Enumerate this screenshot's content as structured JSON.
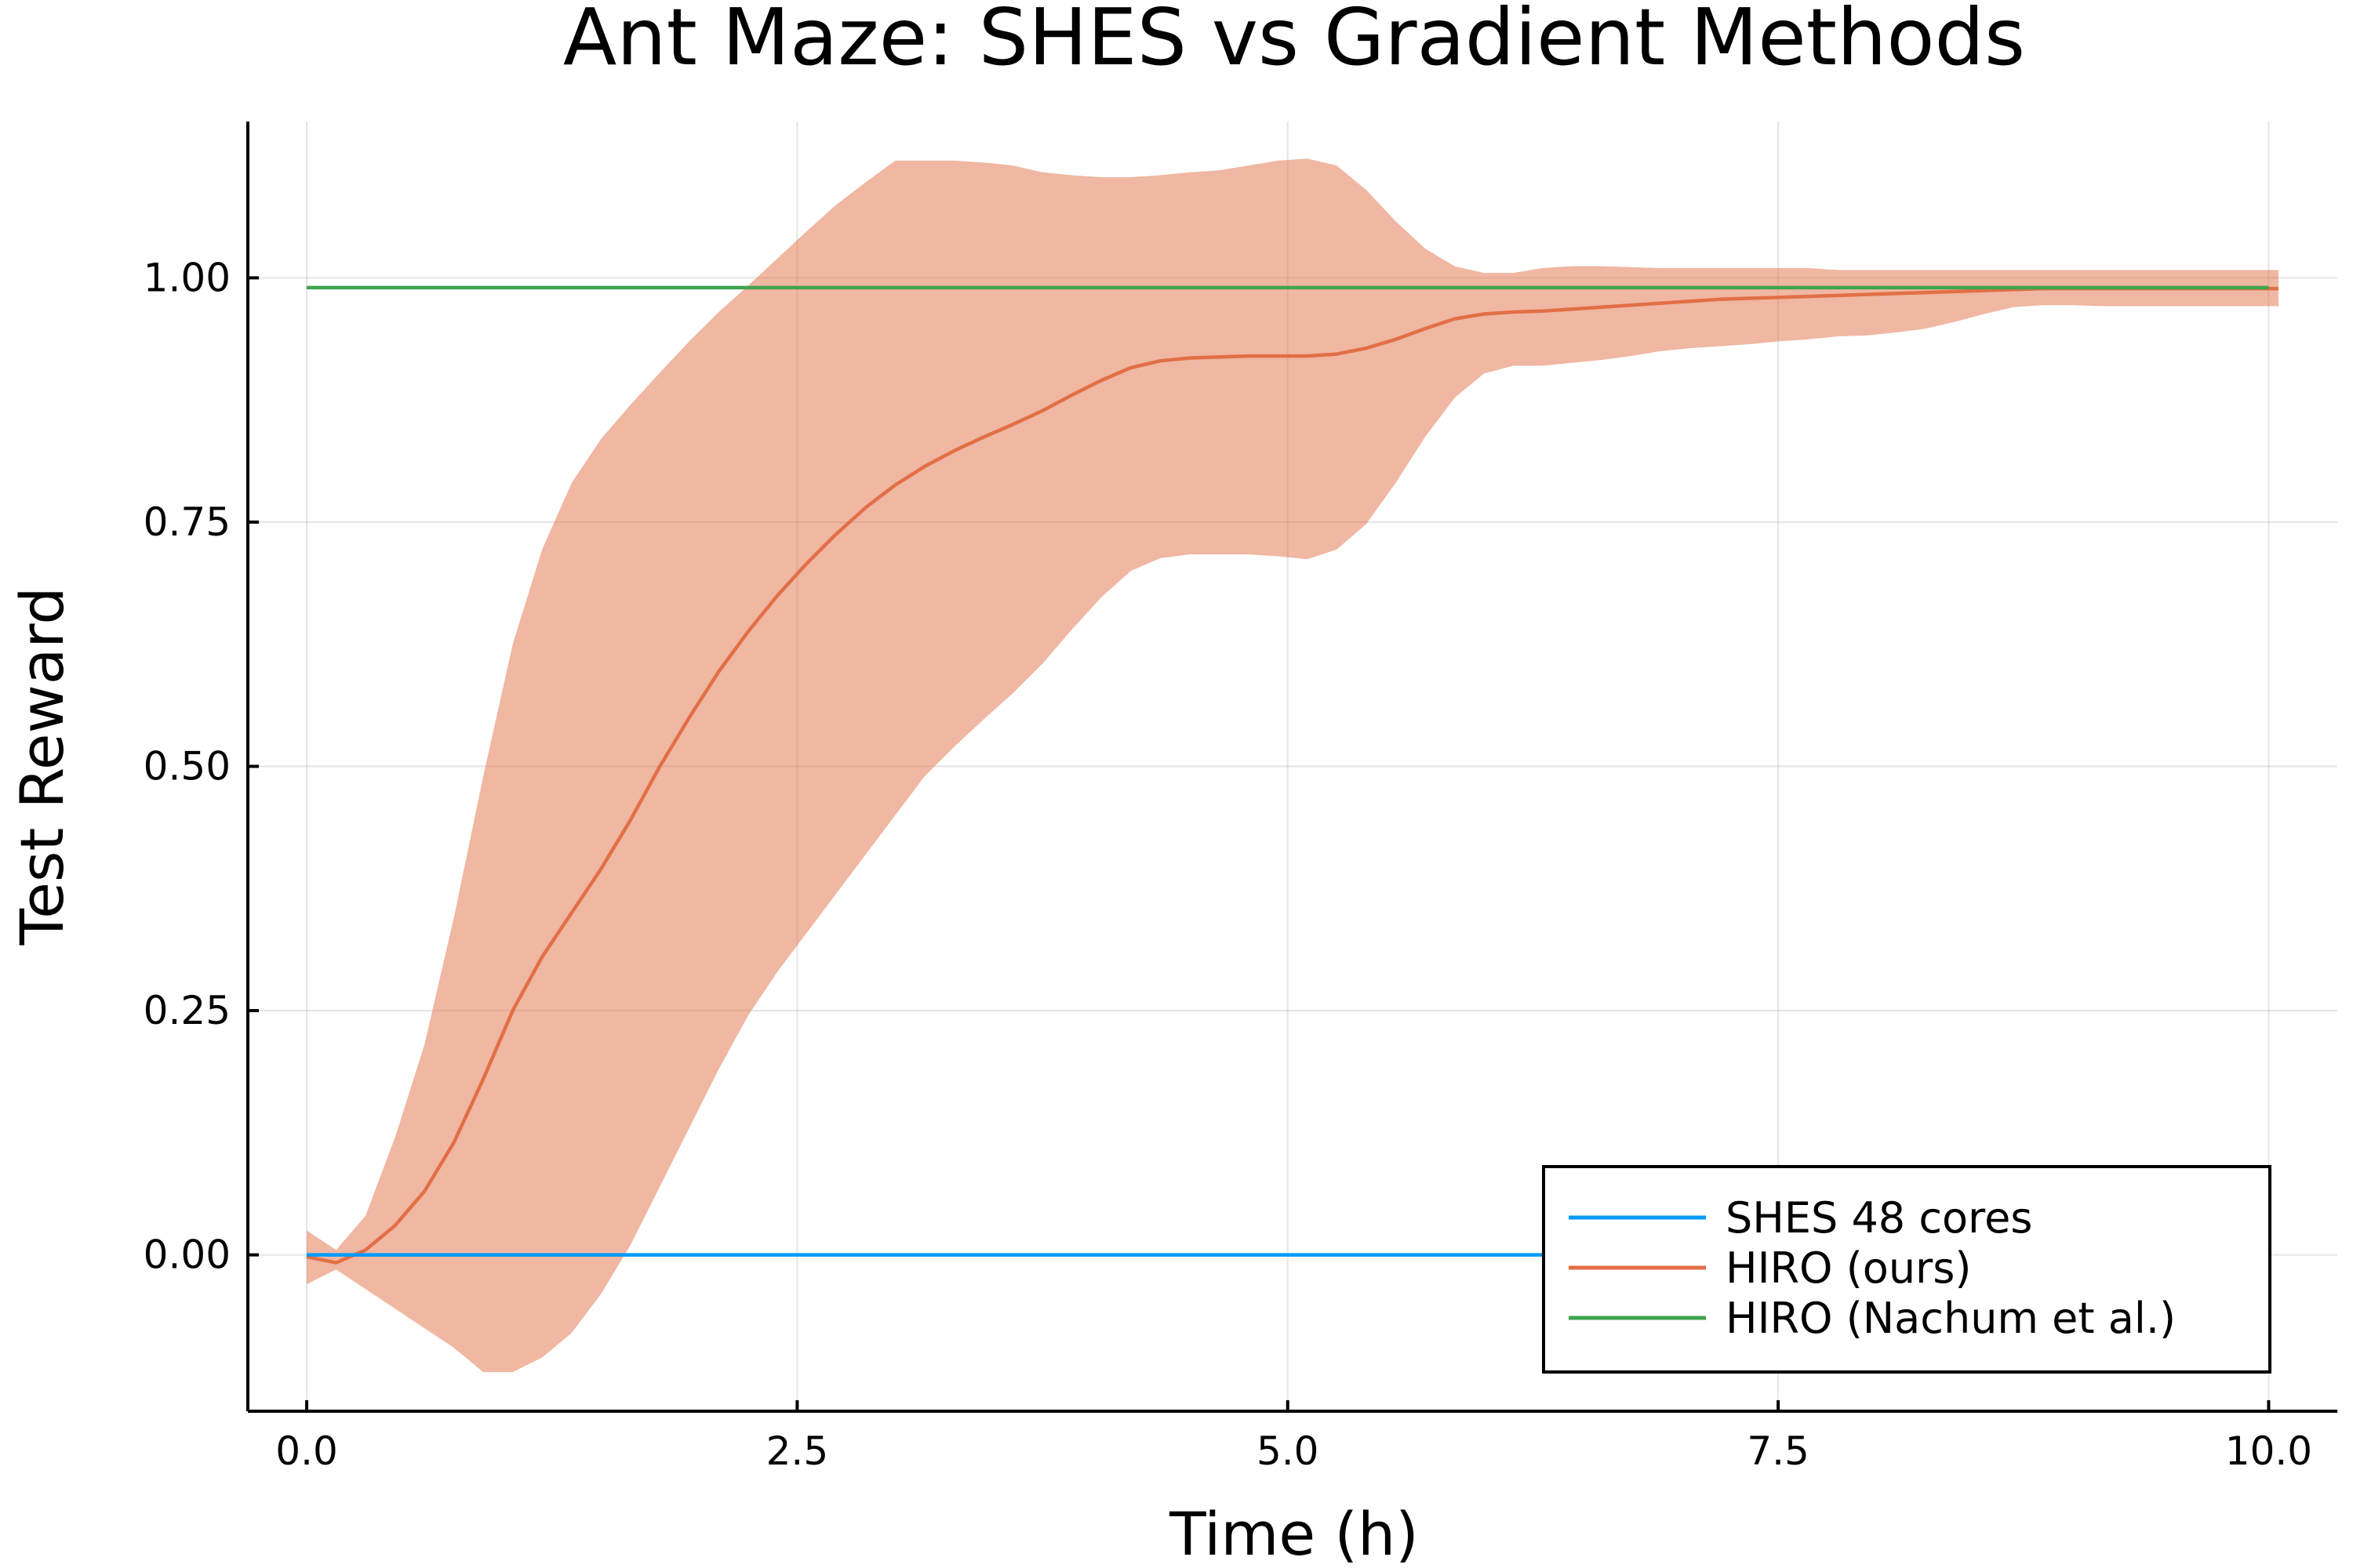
{
  "chart_data": {
    "type": "line",
    "title": "Ant Maze: SHES vs Gradient Methods",
    "xlabel": "Time (h)",
    "ylabel": "Test Reward",
    "xlim": [
      -0.3,
      10.35
    ],
    "ylim": [
      -0.16,
      1.16
    ],
    "xticks": [
      0.0,
      2.5,
      5.0,
      7.5,
      10.0
    ],
    "xtick_labels": [
      "0.0",
      "2.5",
      "5.0",
      "7.5",
      "10.0"
    ],
    "yticks": [
      0.0,
      0.25,
      0.5,
      0.75,
      1.0
    ],
    "ytick_labels": [
      "0.00",
      "0.25",
      "0.50",
      "0.75",
      "1.00"
    ],
    "grid": true,
    "legend_position": "bottom-right",
    "series": [
      {
        "name": "SHES 48 cores",
        "color": "#009AFA",
        "x": [
          0.0,
          10.0
        ],
        "y": [
          0.0,
          0.0
        ]
      },
      {
        "name": "HIRO (ours)",
        "color": "#E26F46",
        "x": [
          0.0,
          0.15,
          0.3,
          0.45,
          0.6,
          0.75,
          0.9,
          1.05,
          1.2,
          1.35,
          1.5,
          1.65,
          1.8,
          1.95,
          2.1,
          2.25,
          2.4,
          2.55,
          2.7,
          2.85,
          3.0,
          3.15,
          3.3,
          3.45,
          3.6,
          3.75,
          3.9,
          4.05,
          4.2,
          4.35,
          4.5,
          4.65,
          4.8,
          4.95,
          5.1,
          5.25,
          5.4,
          5.55,
          5.7,
          5.85,
          6.0,
          6.15,
          6.3,
          6.45,
          6.6,
          6.75,
          6.9,
          7.05,
          7.2,
          7.35,
          7.5,
          7.65,
          7.8,
          7.95,
          8.1,
          8.25,
          8.4,
          8.55,
          8.7,
          8.85,
          9.0,
          9.15,
          9.3,
          9.45,
          9.6,
          9.75,
          9.9,
          10.05
        ],
        "y": [
          -0.002,
          -0.008,
          0.005,
          0.03,
          0.065,
          0.115,
          0.18,
          0.25,
          0.305,
          0.35,
          0.395,
          0.445,
          0.5,
          0.55,
          0.597,
          0.638,
          0.675,
          0.708,
          0.738,
          0.765,
          0.788,
          0.807,
          0.823,
          0.837,
          0.85,
          0.864,
          0.88,
          0.895,
          0.908,
          0.915,
          0.918,
          0.919,
          0.92,
          0.92,
          0.92,
          0.922,
          0.928,
          0.937,
          0.948,
          0.958,
          0.963,
          0.965,
          0.966,
          0.968,
          0.97,
          0.972,
          0.974,
          0.976,
          0.978,
          0.979,
          0.98,
          0.981,
          0.982,
          0.983,
          0.984,
          0.985,
          0.986,
          0.987,
          0.988,
          0.989,
          0.989,
          0.989,
          0.989,
          0.989,
          0.989,
          0.989,
          0.989,
          0.989
        ],
        "lower": [
          -0.03,
          -0.015,
          -0.035,
          -0.055,
          -0.075,
          -0.095,
          -0.12,
          -0.12,
          -0.105,
          -0.08,
          -0.04,
          0.01,
          0.07,
          0.13,
          0.19,
          0.245,
          0.29,
          0.33,
          0.37,
          0.41,
          0.45,
          0.49,
          0.52,
          0.548,
          0.575,
          0.605,
          0.64,
          0.673,
          0.7,
          0.713,
          0.717,
          0.717,
          0.717,
          0.715,
          0.712,
          0.722,
          0.748,
          0.79,
          0.837,
          0.877,
          0.902,
          0.91,
          0.91,
          0.913,
          0.916,
          0.92,
          0.925,
          0.928,
          0.93,
          0.932,
          0.935,
          0.937,
          0.94,
          0.941,
          0.944,
          0.948,
          0.955,
          0.963,
          0.97,
          0.972,
          0.972,
          0.971,
          0.971,
          0.971,
          0.971,
          0.971,
          0.971,
          0.971
        ],
        "upper": [
          0.025,
          0.005,
          0.04,
          0.12,
          0.215,
          0.345,
          0.49,
          0.625,
          0.722,
          0.79,
          0.835,
          0.87,
          0.903,
          0.935,
          0.965,
          0.992,
          1.02,
          1.048,
          1.075,
          1.098,
          1.12,
          1.12,
          1.12,
          1.118,
          1.115,
          1.108,
          1.105,
          1.103,
          1.103,
          1.105,
          1.108,
          1.11,
          1.115,
          1.12,
          1.122,
          1.115,
          1.09,
          1.058,
          1.03,
          1.012,
          1.005,
          1.005,
          1.01,
          1.012,
          1.012,
          1.011,
          1.01,
          1.01,
          1.01,
          1.01,
          1.01,
          1.01,
          1.008,
          1.008,
          1.008,
          1.008,
          1.008,
          1.008,
          1.008,
          1.008,
          1.008,
          1.008,
          1.008,
          1.008,
          1.008,
          1.008,
          1.008,
          1.008
        ]
      },
      {
        "name": "HIRO (Nachum et al.)",
        "color": "#3EA44E",
        "x": [
          0.0,
          10.0
        ],
        "y": [
          0.99,
          0.99
        ]
      }
    ],
    "band_color": "#E26F46",
    "band_opacity": 0.5
  }
}
